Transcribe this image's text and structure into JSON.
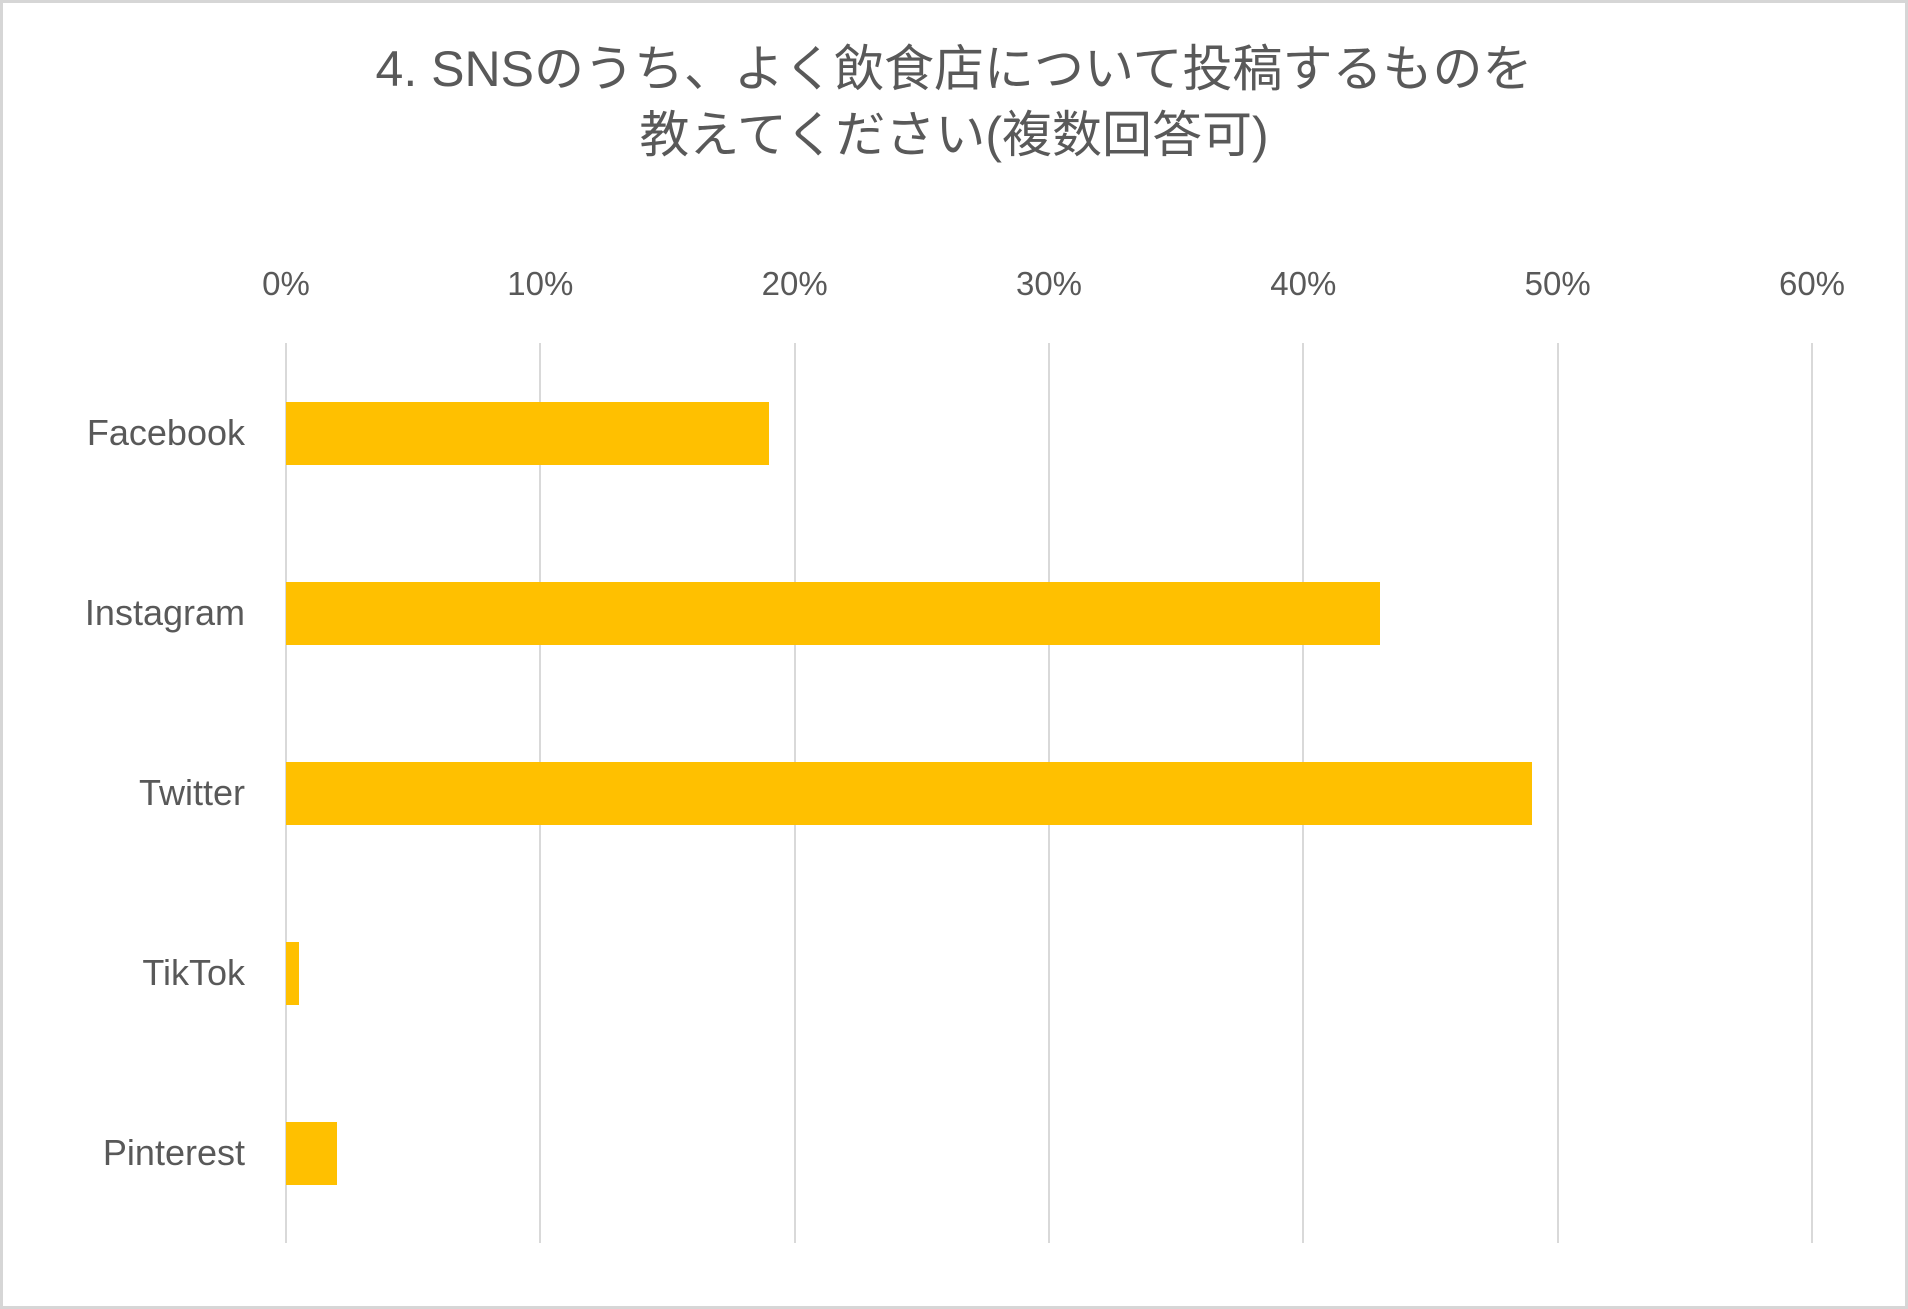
{
  "chart_data": {
    "type": "bar",
    "orientation": "horizontal",
    "title": "4. SNSのうち、よく飲食店について投稿するものを教えてください(複数回答可)",
    "title_lines": [
      "4. SNSのうち、よく飲食店について投稿するものを",
      "教えてください(複数回答可)"
    ],
    "categories": [
      "Facebook",
      "Instagram",
      "Twitter",
      "TikTok",
      "Pinterest"
    ],
    "values": [
      19,
      43,
      49,
      0.5,
      2
    ],
    "value_unit": "%",
    "x_tick_labels": [
      "0%",
      "10%",
      "20%",
      "30%",
      "40%",
      "50%",
      "60%"
    ],
    "xlim": [
      0,
      60
    ],
    "grid": true,
    "legend": false,
    "data_labels": false,
    "colors": {
      "bar": "#FFC000",
      "text": "#595959",
      "gridline": "#D9D9D9",
      "axis_line": "#D9D9D9",
      "border": "#D6D6D6",
      "background": "#FFFFFF"
    }
  }
}
